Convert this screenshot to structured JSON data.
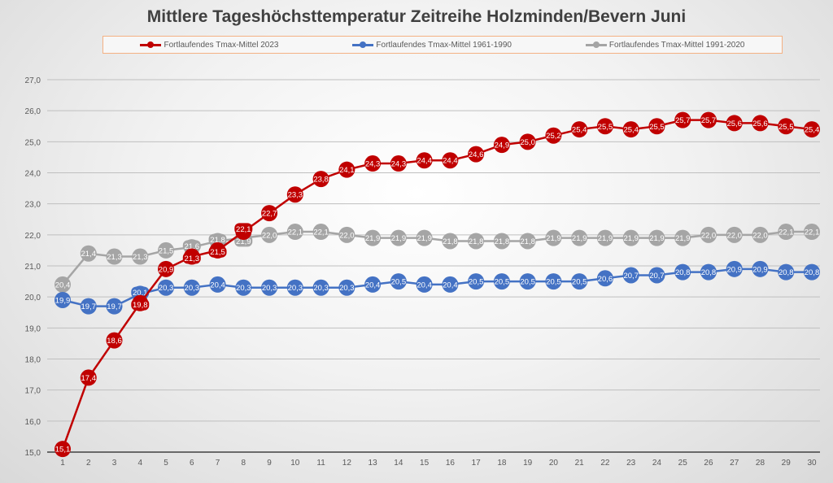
{
  "chart_data": {
    "type": "line",
    "title": "Mittlere Tageshöchsttemperatur Zeitreihe Holzminden/Bevern Juni",
    "xlabel": "",
    "ylabel": "",
    "ylim": [
      15.0,
      27.0
    ],
    "ystep": 1.0,
    "grid": true,
    "legend_position": "top",
    "x": [
      1,
      2,
      3,
      4,
      5,
      6,
      7,
      8,
      9,
      10,
      11,
      12,
      13,
      14,
      15,
      16,
      17,
      18,
      19,
      20,
      21,
      22,
      23,
      24,
      25,
      26,
      27,
      28,
      29,
      30
    ],
    "series": [
      {
        "name": "Fortlaufendes Tmax-Mittel 2023",
        "color": "#c00000",
        "values": [
          15.1,
          17.4,
          18.6,
          19.8,
          20.9,
          21.3,
          21.5,
          22.1,
          22.7,
          23.3,
          23.8,
          24.1,
          24.3,
          24.3,
          24.4,
          24.4,
          24.6,
          24.9,
          25.0,
          25.2,
          25.4,
          25.5,
          25.4,
          25.5,
          25.7,
          25.7,
          25.6,
          25.6,
          25.5,
          25.4
        ]
      },
      {
        "name": "Fortlaufendes Tmax-Mittel 1961-1990",
        "color": "#4472c4",
        "values": [
          19.9,
          19.7,
          19.7,
          20.1,
          20.3,
          20.3,
          20.4,
          20.3,
          20.3,
          20.3,
          20.3,
          20.3,
          20.4,
          20.5,
          20.4,
          20.4,
          20.5,
          20.5,
          20.5,
          20.5,
          20.5,
          20.6,
          20.7,
          20.7,
          20.8,
          20.8,
          20.9,
          20.9,
          20.8,
          20.8
        ]
      },
      {
        "name": "Fortlaufendes Tmax-Mittel 1991-2020",
        "color": "#a5a5a5",
        "values": [
          20.4,
          21.4,
          21.3,
          21.3,
          21.5,
          21.6,
          21.8,
          21.9,
          22.0,
          22.1,
          22.1,
          22.0,
          21.9,
          21.9,
          21.9,
          21.8,
          21.8,
          21.8,
          21.8,
          21.9,
          21.9,
          21.9,
          21.9,
          21.9,
          21.9,
          22.0,
          22.0,
          22.0,
          22.1,
          22.1
        ]
      }
    ]
  }
}
